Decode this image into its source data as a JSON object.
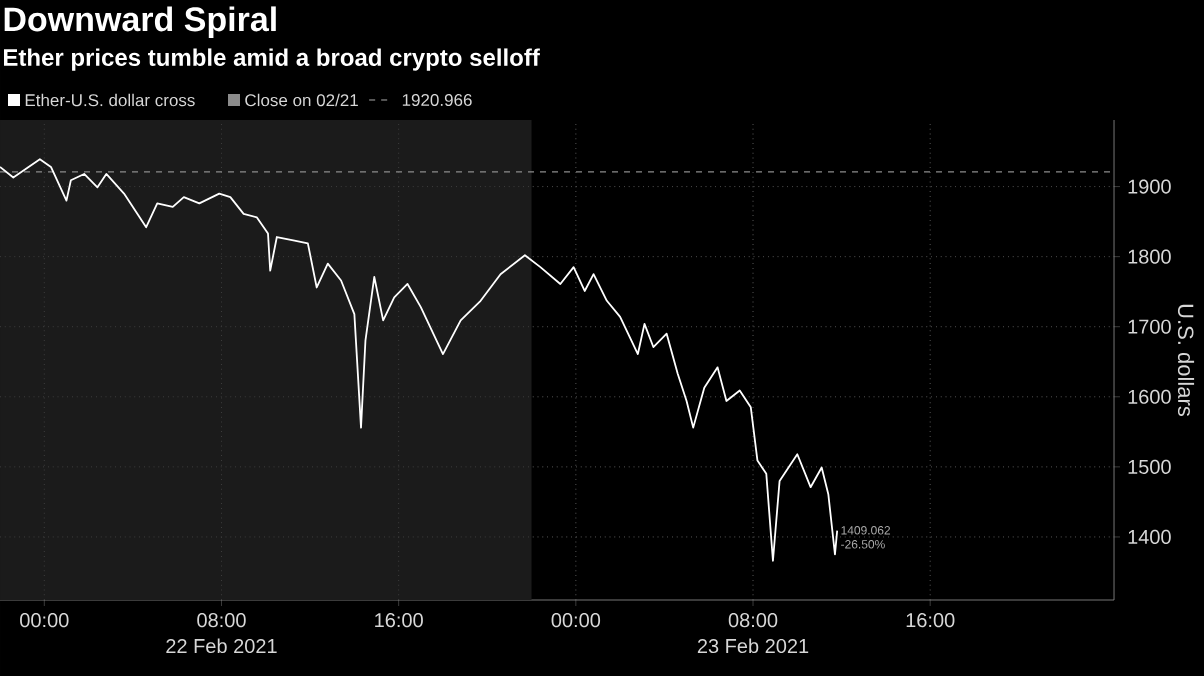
{
  "chart_data": {
    "type": "line",
    "title": "Downward Spiral",
    "subtitle": "Ether prices tumble amid a broad crypto selloff",
    "ylabel": "U.S. dollars",
    "xlim": [
      "2021-02-21T22:00",
      "2021-02-24T00:18"
    ],
    "ylim": [
      1310,
      1995
    ],
    "xticks": [
      {
        "value": "2021-02-22T00:00",
        "label": "00:00"
      },
      {
        "value": "2021-02-22T08:00",
        "label": "08:00"
      },
      {
        "value": "2021-02-22T16:00",
        "label": "16:00"
      },
      {
        "value": "2021-02-23T00:00",
        "label": "00:00"
      },
      {
        "value": "2021-02-23T08:00",
        "label": "08:00"
      },
      {
        "value": "2021-02-23T16:00",
        "label": "16:00"
      }
    ],
    "yticks": [
      1400,
      1500,
      1600,
      1700,
      1800,
      1900
    ],
    "grid": true,
    "legend": "top",
    "marker": "none",
    "line_style": "solid",
    "series": [
      {
        "name": "Ether-U.S. dollar cross",
        "color": "#ffffff",
        "x": [
          "2021-02-21T22:00",
          "2021-02-21T22:36",
          "2021-02-21T23:48",
          "2021-02-22T00:18",
          "2021-02-22T01:00",
          "2021-02-22T01:12",
          "2021-02-22T01:48",
          "2021-02-22T02:24",
          "2021-02-22T02:48",
          "2021-02-22T03:36",
          "2021-02-22T04:00",
          "2021-02-22T04:36",
          "2021-02-22T05:06",
          "2021-02-22T05:48",
          "2021-02-22T06:18",
          "2021-02-22T07:00",
          "2021-02-22T07:54",
          "2021-02-22T08:24",
          "2021-02-22T09:00",
          "2021-02-22T09:36",
          "2021-02-22T10:06",
          "2021-02-22T10:12",
          "2021-02-22T10:30",
          "2021-02-22T11:18",
          "2021-02-22T11:54",
          "2021-02-22T12:18",
          "2021-02-22T12:48",
          "2021-02-22T13:24",
          "2021-02-22T14:00",
          "2021-02-22T14:18",
          "2021-02-22T14:30",
          "2021-02-22T14:54",
          "2021-02-22T15:18",
          "2021-02-22T15:48",
          "2021-02-22T16:24",
          "2021-02-22T17:00",
          "2021-02-22T18:00",
          "2021-02-22T18:48",
          "2021-02-22T19:42",
          "2021-02-22T20:36",
          "2021-02-22T21:42",
          "2021-02-22T22:24",
          "2021-02-22T23:18",
          "2021-02-22T23:54",
          "2021-02-23T00:24",
          "2021-02-23T00:48",
          "2021-02-23T01:24",
          "2021-02-23T02:00",
          "2021-02-23T02:48",
          "2021-02-23T03:06",
          "2021-02-23T03:30",
          "2021-02-23T04:06",
          "2021-02-23T04:36",
          "2021-02-23T05:00",
          "2021-02-23T05:18",
          "2021-02-23T05:48",
          "2021-02-23T06:24",
          "2021-02-23T06:48",
          "2021-02-23T07:24",
          "2021-02-23T07:54",
          "2021-02-23T08:12",
          "2021-02-23T08:36",
          "2021-02-23T08:54",
          "2021-02-23T09:12",
          "2021-02-23T10:00",
          "2021-02-23T10:36",
          "2021-02-23T11:06",
          "2021-02-23T11:24",
          "2021-02-23T11:42",
          "2021-02-23T11:48"
        ],
        "values": [
          1928,
          1913,
          1939,
          1928,
          1880,
          1909,
          1918,
          1899,
          1918,
          1890,
          1871,
          1842,
          1876,
          1871,
          1885,
          1876,
          1890,
          1885,
          1861,
          1856,
          1833,
          1780,
          1828,
          1823,
          1819,
          1756,
          1790,
          1766,
          1718,
          1556,
          1680,
          1771,
          1709,
          1742,
          1761,
          1728,
          1661,
          1709,
          1737,
          1775,
          1802,
          1785,
          1761,
          1785,
          1751,
          1775,
          1737,
          1714,
          1661,
          1704,
          1671,
          1690,
          1633,
          1594,
          1556,
          1613,
          1642,
          1594,
          1609,
          1585,
          1509,
          1490,
          1366,
          1480,
          1518,
          1471,
          1499,
          1461,
          1375,
          1409
        ]
      }
    ],
    "ref_lines": [
      {
        "axis": "y",
        "value": 1920.966,
        "label": "Close on 02/21",
        "color": "#8c8c8c",
        "line_style": "dashed"
      }
    ],
    "bands": [
      {
        "axis": "x",
        "from": "2021-02-21T22:00",
        "to": "2021-02-22T22:00",
        "color": "#1b1b1b"
      }
    ],
    "annotations": [
      "22 Feb 2021",
      "23 Feb 2021",
      "1920.966",
      {
        "text": "1409.062",
        "x": "2021-02-23T11:48",
        "y": 1409
      },
      {
        "text": "-26.50%",
        "x": "2021-02-23T11:48",
        "y": 1409
      }
    ]
  }
}
